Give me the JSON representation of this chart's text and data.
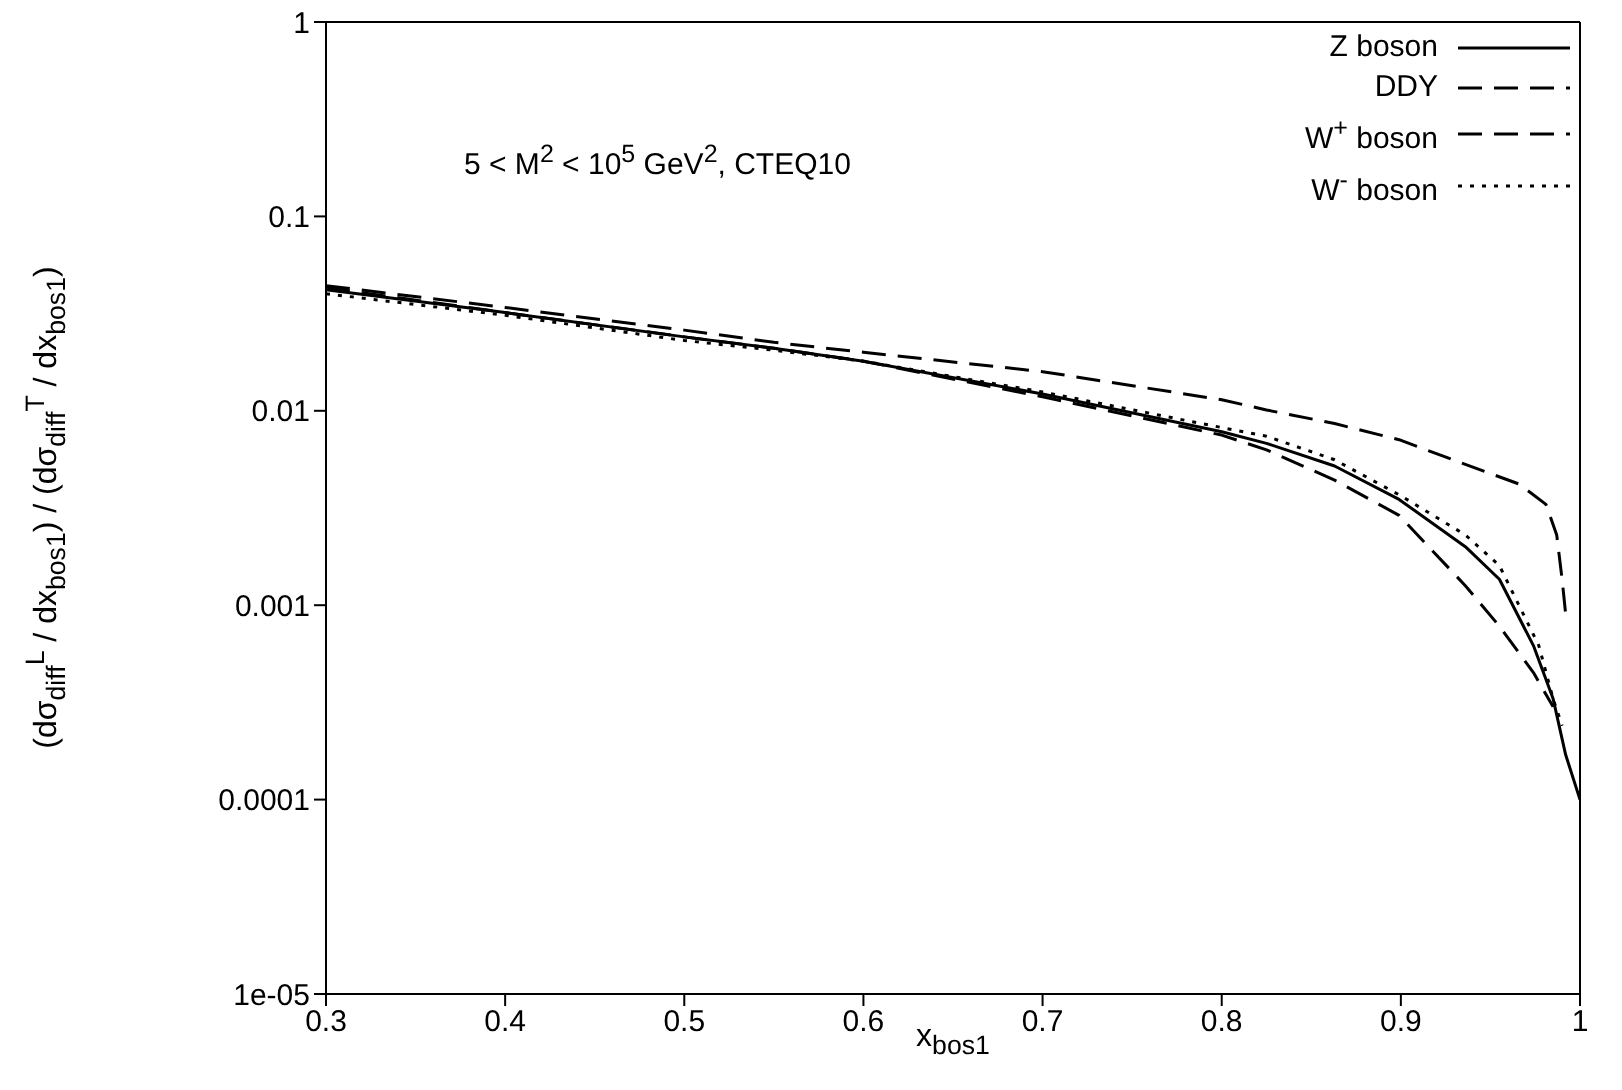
{
  "chart_data": {
    "type": "line",
    "xlabel": "x$_{bos1}$",
    "ylabel": "(dσ$_{diff}$$^{L}$ / dx$_{bos1}$) / (dσ$_{diff}$$^{T}$ / dx$_{bos1}$)",
    "annotations": [
      "5 < M$^{2}$ < 10$^{5}$ GeV$^{2}$, CTEQ10"
    ],
    "log": "y",
    "grid": false,
    "legend": "top right",
    "marker": "none",
    "xlim": [
      0.3,
      1
    ],
    "xticks": [
      0.3,
      0.4,
      0.5,
      0.6,
      0.7,
      0.8,
      0.9,
      1
    ],
    "ylim": [
      1e-05,
      1
    ],
    "yticks": [
      {
        "value": 1e-05,
        "label": "1e-05"
      },
      0.0001,
      0.001,
      0.01,
      0.1,
      1
    ],
    "series": [
      {
        "name": "Z boson",
        "color": "#000000",
        "line_style": "solid",
        "x": [
          0.3,
          0.4,
          0.5,
          0.55,
          0.6,
          0.7,
          0.8,
          0.825,
          0.863,
          0.899,
          0.936,
          0.955,
          0.974,
          0.985,
          0.992,
          1.0
        ],
        "values": [
          0.042,
          0.032,
          0.024,
          0.021,
          0.018,
          0.0122,
          0.0078,
          0.0068,
          0.0052,
          0.0035,
          0.002,
          0.00136,
          0.00062,
          0.00033,
          0.00017,
          0.0001
        ]
      },
      {
        "name": "DDY",
        "color": "#000000",
        "line_style": "dashed",
        "x": [
          0.3,
          0.4,
          0.5,
          0.55,
          0.6,
          0.7,
          0.8,
          0.825,
          0.863,
          0.899,
          0.936,
          0.966,
          0.981,
          0.987,
          0.99,
          0.992
        ],
        "values": [
          0.044,
          0.034,
          0.026,
          0.0225,
          0.02,
          0.0159,
          0.0114,
          0.0101,
          0.0086,
          0.0071,
          0.0053,
          0.0042,
          0.0033,
          0.0023,
          0.00136,
          0.0009
        ]
      },
      {
        "name": "W$^{+}$ boson",
        "color": "#000000",
        "line_style": "dashed",
        "x": [
          0.3,
          0.4,
          0.5,
          0.55,
          0.6,
          0.7,
          0.8,
          0.825,
          0.863,
          0.899,
          0.936,
          0.955,
          0.974,
          0.985
        ],
        "values": [
          0.043,
          0.032,
          0.024,
          0.021,
          0.018,
          0.0118,
          0.0075,
          0.0063,
          0.0044,
          0.0029,
          0.00126,
          0.00078,
          0.00045,
          0.0003
        ]
      },
      {
        "name": "W$^{-}$ boson",
        "color": "#000000",
        "line_style": "dotted",
        "x": [
          0.3,
          0.4,
          0.5,
          0.55,
          0.6,
          0.7,
          0.8,
          0.825,
          0.863,
          0.899,
          0.936,
          0.955,
          0.977,
          0.985,
          0.99
        ],
        "values": [
          0.04,
          0.031,
          0.023,
          0.0205,
          0.018,
          0.0125,
          0.0082,
          0.0074,
          0.0056,
          0.0037,
          0.0023,
          0.0016,
          0.00062,
          0.00033,
          0.00024
        ]
      }
    ]
  }
}
